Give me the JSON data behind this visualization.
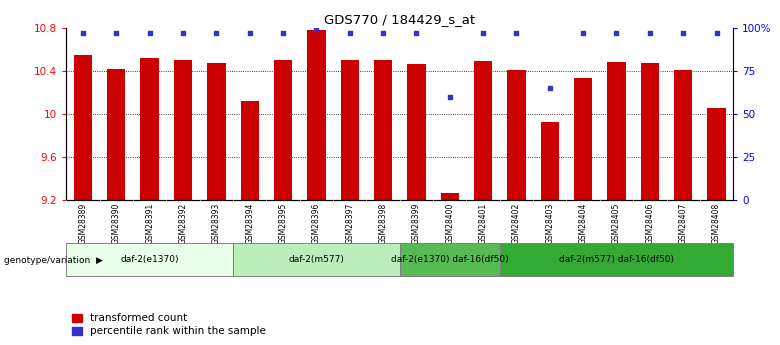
{
  "title": "GDS770 / 184429_s_at",
  "samples": [
    "GSM28389",
    "GSM28390",
    "GSM28391",
    "GSM28392",
    "GSM28393",
    "GSM28394",
    "GSM28395",
    "GSM28396",
    "GSM28397",
    "GSM28398",
    "GSM28399",
    "GSM28400",
    "GSM28401",
    "GSM28402",
    "GSM28403",
    "GSM28404",
    "GSM28405",
    "GSM28406",
    "GSM28407",
    "GSM28408"
  ],
  "bar_values": [
    10.55,
    10.42,
    10.52,
    10.5,
    10.47,
    10.12,
    10.5,
    10.78,
    10.5,
    10.5,
    10.46,
    9.27,
    10.49,
    10.41,
    9.92,
    10.33,
    10.48,
    10.47,
    10.41,
    10.05
  ],
  "percentile_values": [
    97,
    97,
    97,
    97,
    97,
    97,
    97,
    99,
    97,
    97,
    97,
    60,
    97,
    97,
    65,
    97,
    97,
    97,
    97,
    97
  ],
  "ymin": 9.2,
  "ymax": 10.8,
  "yticks": [
    9.2,
    9.6,
    10.0,
    10.4,
    10.8
  ],
  "ytick_labels": [
    "9.2",
    "9.6",
    "10",
    "10.4",
    "10.8"
  ],
  "right_yticks": [
    0,
    25,
    50,
    75,
    100
  ],
  "right_ytick_labels": [
    "0",
    "25",
    "50",
    "75",
    "100%"
  ],
  "bar_color": "#cc0000",
  "dot_color": "#3333cc",
  "background_color": "#ffffff",
  "groups": [
    {
      "label": "daf-2(e1370)",
      "start": 0,
      "end": 5,
      "color": "#e8ffe8"
    },
    {
      "label": "daf-2(m577)",
      "start": 5,
      "end": 10,
      "color": "#bbeebb"
    },
    {
      "label": "daf-2(e1370) daf-16(df50)",
      "start": 10,
      "end": 13,
      "color": "#55bb55"
    },
    {
      "label": "daf-2(m577) daf-16(df50)",
      "start": 13,
      "end": 20,
      "color": "#33aa33"
    }
  ],
  "legend_red_label": "transformed count",
  "legend_blue_label": "percentile rank within the sample",
  "genotype_label": "genotype/variation"
}
